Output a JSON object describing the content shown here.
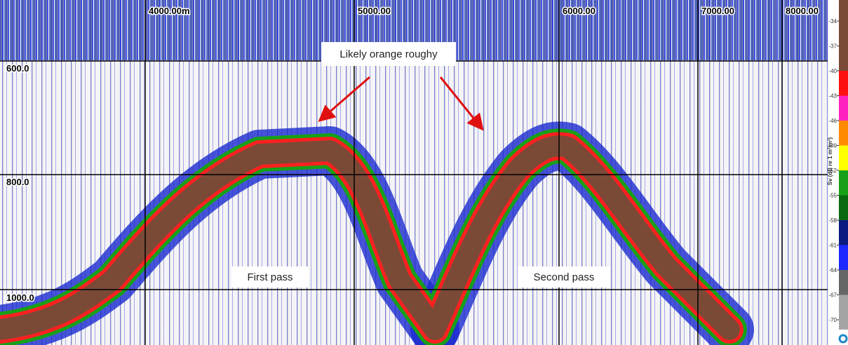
{
  "echogram": {
    "x_labels": [
      "4000.00m",
      "5000.00",
      "6000.00",
      "7000.00",
      "8000.00"
    ],
    "y_labels": [
      "600.0",
      "800.0",
      "1000.0"
    ],
    "annotations": {
      "target": "Likely orange roughy",
      "first": "First pass",
      "second": "Second pass"
    }
  },
  "colorbar": {
    "label": "Sv (dB re 1 m²/m³)",
    "ticks": [
      -34,
      -37,
      -40,
      -43,
      -46,
      -49,
      -52,
      -55,
      -58,
      -61,
      -64,
      -67,
      -70
    ],
    "colors": [
      "#7b4a36",
      "#7b4a36",
      "#ff1010",
      "#ff20c0",
      "#ff8a00",
      "#ffff00",
      "#18a018",
      "#0a6a10",
      "#0a1a80",
      "#1c28ff",
      "#666666",
      "#a4a4a4"
    ]
  }
}
